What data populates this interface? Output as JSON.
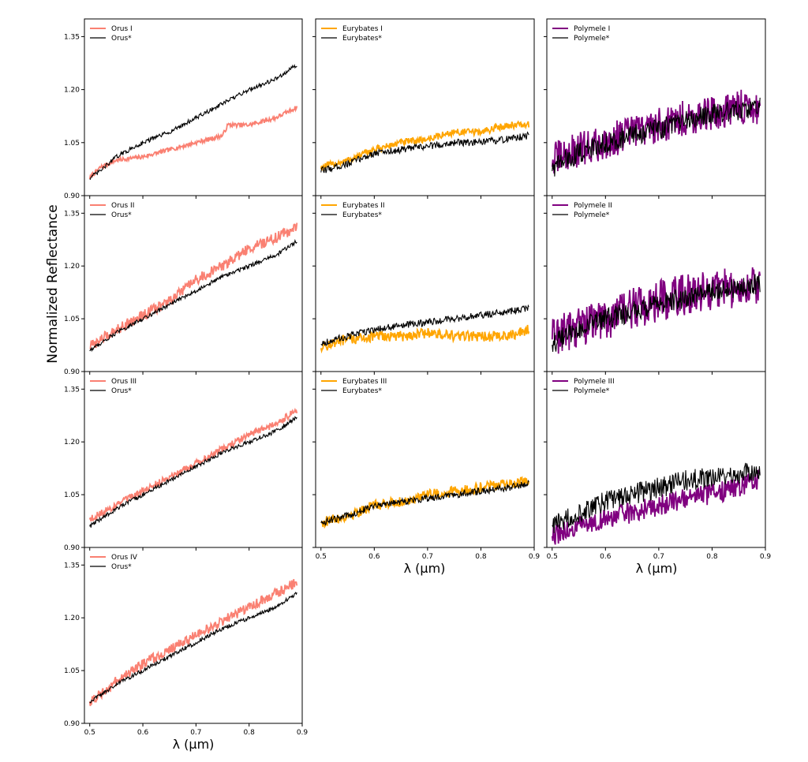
{
  "figure": {
    "ylabel": "Normalized Reflectance",
    "xlabel": "λ (μm)"
  },
  "colors": {
    "orus": "#fa8072",
    "eurybates": "#ffa500",
    "polymele": "#800080",
    "reference": "#000000"
  },
  "axes": {
    "x_ticks": [
      "0.5",
      "0.6",
      "0.7",
      "0.8",
      "0.9"
    ],
    "y_ticks": [
      "0.90",
      "1.05",
      "1.20",
      "1.35"
    ]
  },
  "chart_data": [
    {
      "type": "line",
      "panel": "Orus I",
      "xlim": [
        0.49,
        0.9
      ],
      "ylim": [
        0.9,
        1.4
      ],
      "series": [
        {
          "name": "Orus I",
          "color": "#fa8072",
          "x": [
            0.5,
            0.52,
            0.55,
            0.6,
            0.65,
            0.7,
            0.75,
            0.76,
            0.8,
            0.85,
            0.89
          ],
          "y": [
            0.95,
            0.98,
            1.0,
            1.01,
            1.03,
            1.05,
            1.07,
            1.1,
            1.1,
            1.12,
            1.15
          ],
          "noise": 0.006
        },
        {
          "name": "Orus*",
          "color": "#000000",
          "x": [
            0.5,
            0.52,
            0.55,
            0.6,
            0.65,
            0.7,
            0.75,
            0.8,
            0.85,
            0.89
          ],
          "y": [
            0.95,
            0.97,
            1.01,
            1.05,
            1.08,
            1.12,
            1.16,
            1.2,
            1.23,
            1.27
          ],
          "noise": 0.006
        }
      ]
    },
    {
      "type": "line",
      "panel": "Eurybates I",
      "xlim": [
        0.49,
        0.9
      ],
      "ylim": [
        0.9,
        1.4
      ],
      "series": [
        {
          "name": "Eurybates I",
          "color": "#ffa500",
          "x": [
            0.5,
            0.55,
            0.6,
            0.65,
            0.7,
            0.75,
            0.8,
            0.85,
            0.89
          ],
          "y": [
            0.98,
            1.0,
            1.03,
            1.05,
            1.06,
            1.08,
            1.08,
            1.1,
            1.1
          ],
          "noise": 0.01
        },
        {
          "name": "Eurybates*",
          "color": "#000000",
          "x": [
            0.5,
            0.55,
            0.6,
            0.65,
            0.7,
            0.75,
            0.8,
            0.85,
            0.89
          ],
          "y": [
            0.97,
            0.99,
            1.02,
            1.03,
            1.04,
            1.05,
            1.05,
            1.06,
            1.07
          ],
          "noise": 0.01
        }
      ]
    },
    {
      "type": "line",
      "panel": "Polymele I",
      "xlim": [
        0.49,
        0.9
      ],
      "ylim": [
        0.9,
        1.4
      ],
      "series": [
        {
          "name": "Polymele I",
          "color": "#800080",
          "x": [
            0.5,
            0.55,
            0.6,
            0.65,
            0.7,
            0.75,
            0.8,
            0.85,
            0.89
          ],
          "y": [
            1.0,
            1.03,
            1.05,
            1.08,
            1.1,
            1.12,
            1.13,
            1.15,
            1.15
          ],
          "noise": 0.05
        },
        {
          "name": "Polymele*",
          "color": "#000000",
          "x": [
            0.5,
            0.55,
            0.6,
            0.65,
            0.7,
            0.75,
            0.8,
            0.85,
            0.89
          ],
          "y": [
            0.98,
            1.02,
            1.05,
            1.07,
            1.09,
            1.11,
            1.13,
            1.14,
            1.15
          ],
          "noise": 0.03
        }
      ]
    },
    {
      "type": "line",
      "panel": "Orus II",
      "xlim": [
        0.49,
        0.9
      ],
      "ylim": [
        0.9,
        1.4
      ],
      "series": [
        {
          "name": "Orus II",
          "color": "#fa8072",
          "x": [
            0.5,
            0.55,
            0.6,
            0.65,
            0.7,
            0.75,
            0.8,
            0.85,
            0.89
          ],
          "y": [
            0.97,
            1.02,
            1.06,
            1.1,
            1.16,
            1.2,
            1.25,
            1.28,
            1.31
          ],
          "noise": 0.015
        },
        {
          "name": "Orus*",
          "color": "#000000",
          "x": [
            0.5,
            0.55,
            0.6,
            0.65,
            0.7,
            0.75,
            0.8,
            0.85,
            0.89
          ],
          "y": [
            0.96,
            1.01,
            1.05,
            1.09,
            1.13,
            1.17,
            1.2,
            1.23,
            1.27
          ],
          "noise": 0.006
        }
      ]
    },
    {
      "type": "line",
      "panel": "Eurybates II",
      "xlim": [
        0.49,
        0.9
      ],
      "ylim": [
        0.9,
        1.4
      ],
      "series": [
        {
          "name": "Eurybates II",
          "color": "#ffa500",
          "x": [
            0.5,
            0.55,
            0.6,
            0.65,
            0.7,
            0.75,
            0.8,
            0.85,
            0.89
          ],
          "y": [
            0.97,
            0.99,
            1.0,
            1.0,
            1.01,
            1.0,
            1.0,
            1.0,
            1.02
          ],
          "noise": 0.015
        },
        {
          "name": "Eurybates*",
          "color": "#000000",
          "x": [
            0.5,
            0.55,
            0.6,
            0.65,
            0.7,
            0.75,
            0.8,
            0.85,
            0.89
          ],
          "y": [
            0.98,
            1.0,
            1.02,
            1.03,
            1.04,
            1.05,
            1.06,
            1.07,
            1.08
          ],
          "noise": 0.01
        }
      ]
    },
    {
      "type": "line",
      "panel": "Polymele II",
      "xlim": [
        0.49,
        0.9
      ],
      "ylim": [
        0.9,
        1.4
      ],
      "series": [
        {
          "name": "Polymele II",
          "color": "#800080",
          "x": [
            0.5,
            0.55,
            0.6,
            0.65,
            0.7,
            0.75,
            0.8,
            0.85,
            0.89
          ],
          "y": [
            1.0,
            1.03,
            1.05,
            1.08,
            1.1,
            1.12,
            1.13,
            1.14,
            1.15
          ],
          "noise": 0.06
        },
        {
          "name": "Polymele*",
          "color": "#000000",
          "x": [
            0.5,
            0.55,
            0.6,
            0.65,
            0.7,
            0.75,
            0.8,
            0.85,
            0.89
          ],
          "y": [
            0.98,
            1.02,
            1.05,
            1.07,
            1.09,
            1.11,
            1.13,
            1.14,
            1.15
          ],
          "noise": 0.03
        }
      ]
    },
    {
      "type": "line",
      "panel": "Orus III",
      "xlim": [
        0.49,
        0.9
      ],
      "ylim": [
        0.9,
        1.4
      ],
      "series": [
        {
          "name": "Orus III",
          "color": "#fa8072",
          "x": [
            0.5,
            0.55,
            0.6,
            0.65,
            0.7,
            0.75,
            0.8,
            0.85,
            0.89
          ],
          "y": [
            0.98,
            1.02,
            1.06,
            1.1,
            1.14,
            1.18,
            1.22,
            1.25,
            1.29
          ],
          "noise": 0.01
        },
        {
          "name": "Orus*",
          "color": "#000000",
          "x": [
            0.5,
            0.55,
            0.6,
            0.65,
            0.7,
            0.75,
            0.8,
            0.85,
            0.89
          ],
          "y": [
            0.96,
            1.01,
            1.05,
            1.09,
            1.13,
            1.17,
            1.2,
            1.23,
            1.27
          ],
          "noise": 0.006
        }
      ]
    },
    {
      "type": "line",
      "panel": "Eurybates III",
      "xlim": [
        0.49,
        0.9
      ],
      "ylim": [
        0.9,
        1.4
      ],
      "series": [
        {
          "name": "Eurybates III",
          "color": "#ffa500",
          "x": [
            0.5,
            0.55,
            0.6,
            0.65,
            0.7,
            0.75,
            0.8,
            0.85,
            0.89
          ],
          "y": [
            0.97,
            0.99,
            1.02,
            1.03,
            1.05,
            1.06,
            1.07,
            1.08,
            1.09
          ],
          "noise": 0.015
        },
        {
          "name": "Eurybates*",
          "color": "#000000",
          "x": [
            0.5,
            0.55,
            0.6,
            0.65,
            0.7,
            0.75,
            0.8,
            0.85,
            0.89
          ],
          "y": [
            0.97,
            0.99,
            1.02,
            1.03,
            1.04,
            1.05,
            1.06,
            1.07,
            1.08
          ],
          "noise": 0.01
        }
      ]
    },
    {
      "type": "line",
      "panel": "Polymele III",
      "xlim": [
        0.49,
        0.9
      ],
      "ylim": [
        0.9,
        1.4
      ],
      "series": [
        {
          "name": "Polymele III",
          "color": "#800080",
          "x": [
            0.5,
            0.55,
            0.6,
            0.65,
            0.7,
            0.75,
            0.8,
            0.85,
            0.89
          ],
          "y": [
            0.93,
            0.96,
            0.98,
            1.0,
            1.02,
            1.04,
            1.05,
            1.07,
            1.09
          ],
          "noise": 0.03
        },
        {
          "name": "Polymele*",
          "color": "#000000",
          "x": [
            0.5,
            0.55,
            0.6,
            0.65,
            0.7,
            0.75,
            0.8,
            0.85,
            0.89
          ],
          "y": [
            0.96,
            1.0,
            1.03,
            1.05,
            1.07,
            1.09,
            1.1,
            1.11,
            1.12
          ],
          "noise": 0.03
        }
      ]
    },
    {
      "type": "line",
      "panel": "Orus IV",
      "xlim": [
        0.49,
        0.9
      ],
      "ylim": [
        0.9,
        1.4
      ],
      "series": [
        {
          "name": "Orus IV",
          "color": "#fa8072",
          "x": [
            0.5,
            0.55,
            0.6,
            0.65,
            0.7,
            0.75,
            0.8,
            0.85,
            0.89
          ],
          "y": [
            0.96,
            1.02,
            1.07,
            1.11,
            1.15,
            1.19,
            1.23,
            1.27,
            1.3
          ],
          "noise": 0.015
        },
        {
          "name": "Orus*",
          "color": "#000000",
          "x": [
            0.5,
            0.55,
            0.6,
            0.65,
            0.7,
            0.75,
            0.8,
            0.85,
            0.89
          ],
          "y": [
            0.96,
            1.01,
            1.05,
            1.09,
            1.13,
            1.17,
            1.2,
            1.23,
            1.27
          ],
          "noise": 0.006
        }
      ]
    }
  ]
}
